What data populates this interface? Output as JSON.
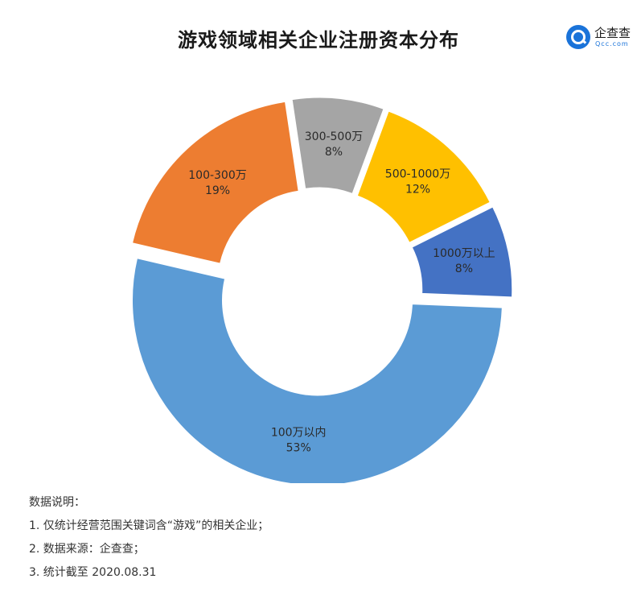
{
  "title": "游戏领域相关企业注册资本分布",
  "logo": {
    "name": "企查查",
    "sub": "Qcc.com"
  },
  "chart_data": {
    "type": "pie",
    "donut": true,
    "slices": [
      {
        "name": "300-500万",
        "value": 8,
        "label": "8%",
        "color": "#a5a5a5"
      },
      {
        "name": "500-1000万",
        "value": 12,
        "label": "12%",
        "color": "#ffc000"
      },
      {
        "name": "1000万以上",
        "value": 8,
        "label": "8%",
        "color": "#4472c4"
      },
      {
        "name": "100万以内",
        "value": 53,
        "label": "53%",
        "color": "#5b9bd5"
      },
      {
        "name": "100-300万",
        "value": 19,
        "label": "19%",
        "color": "#ed7d31"
      }
    ]
  },
  "notes": {
    "heading": "数据说明：",
    "items": [
      "1. 仅统计经营范围关键词含“游戏”的相关企业；",
      "2. 数据来源：企查查；",
      "3. 统计截至 2020.08.31"
    ]
  }
}
